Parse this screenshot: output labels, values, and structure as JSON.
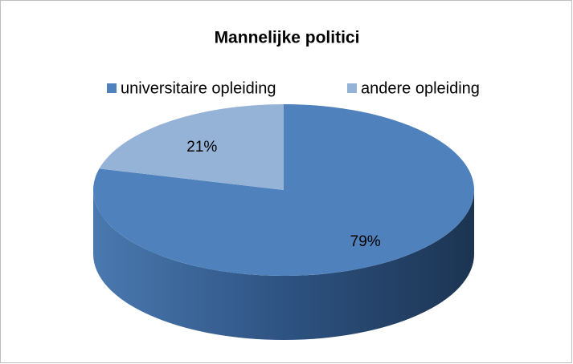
{
  "chart_data": {
    "type": "pie",
    "title": "Mannelijke politici",
    "categories": [
      "universitaire opleiding",
      "andere opleiding"
    ],
    "values": [
      79,
      21
    ],
    "value_labels": [
      "79%",
      "21%"
    ],
    "colors": [
      "#4f81bd",
      "#95b3d7"
    ],
    "legend": "top"
  }
}
